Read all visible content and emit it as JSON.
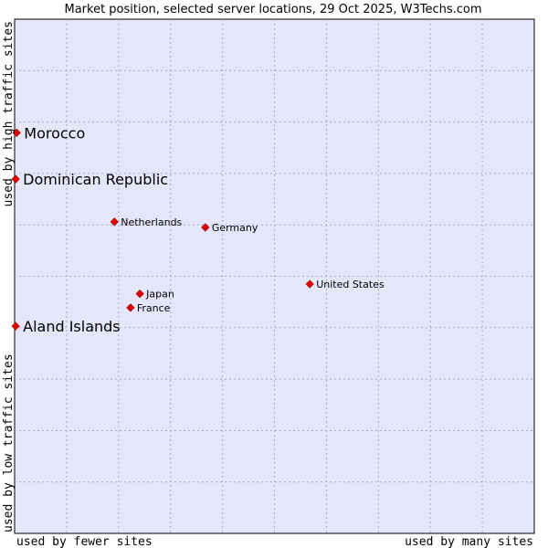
{
  "chart_data": {
    "type": "scatter",
    "title": "Market position, selected server locations, 29 Oct 2025, W3Techs.com",
    "xlabel_left": "used by fewer sites",
    "xlabel_right": "used by many sites",
    "ylabel_bottom": "used by low traffic sites",
    "ylabel_top": "used by high traffic sites",
    "xlim": [
      0,
      100
    ],
    "ylim": [
      0,
      100
    ],
    "grid": true,
    "colors": {
      "plot_background": "#e6e6fa",
      "grid": "#a8a8c0",
      "point": "#e00000",
      "text": "#000000"
    },
    "highlighted": [
      {
        "label": "Morocco",
        "x": 0.4,
        "y": 77.9
      },
      {
        "label": "Dominican Republic",
        "x": 0.2,
        "y": 68.9
      },
      {
        "label": "Aland Islands",
        "x": 0.2,
        "y": 40.3
      }
    ],
    "reference": [
      {
        "label": "Netherlands",
        "x": 19.2,
        "y": 60.6
      },
      {
        "label": "Germany",
        "x": 36.7,
        "y": 59.5
      },
      {
        "label": "United States",
        "x": 56.8,
        "y": 48.5
      },
      {
        "label": "Japan",
        "x": 24.1,
        "y": 46.6
      },
      {
        "label": "France",
        "x": 22.3,
        "y": 43.9
      }
    ]
  }
}
